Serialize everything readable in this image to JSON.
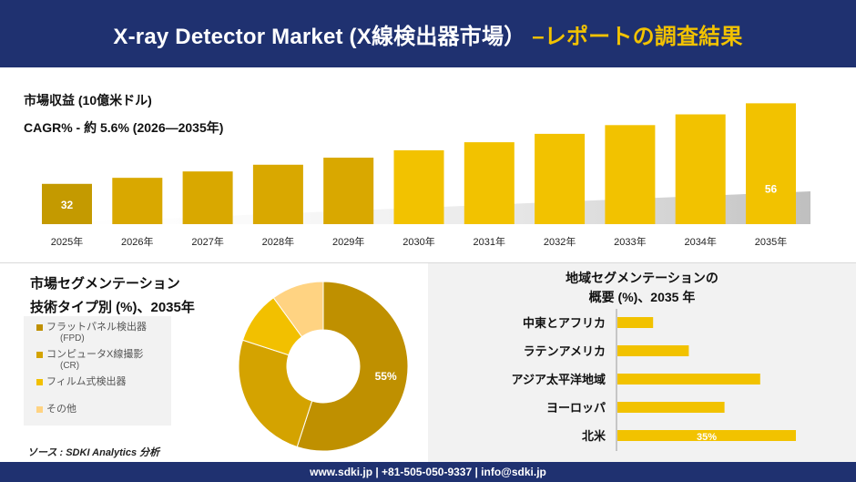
{
  "header": {
    "title_main": "X-ray Detector Market (X線検出器市場）",
    "title_accent": "–レポートの調査結果"
  },
  "top_labels": {
    "revenue": "市場収益 (10億米ドル)",
    "cagr": "CAGR% - 約 5.6% (2026—2035年)"
  },
  "colors": {
    "bar_dark": "#c49a00",
    "bar_mid": "#d9a800",
    "bar_light": "#f2c200",
    "navy": "#1f3170",
    "donut_1": "#bf9000",
    "donut_2": "#d4a300",
    "donut_3": "#f2c000",
    "donut_4": "#ffd382"
  },
  "chart_data": [
    {
      "type": "bar",
      "categories": [
        "2025年",
        "2026年",
        "2027年",
        "2028年",
        "2029年",
        "2030年",
        "2031年",
        "2032年",
        "2033年",
        "2034年",
        "2035年"
      ],
      "values": [
        32,
        33.8,
        35.7,
        37.7,
        39.8,
        42.0,
        44.4,
        46.9,
        49.5,
        52.7,
        56
      ],
      "data_labels": [
        "32",
        "",
        "",
        "",
        "",
        "",
        "",
        "",
        "",
        "",
        "56"
      ],
      "ylim": [
        20,
        58
      ]
    },
    {
      "type": "pie",
      "title": "市場セグメンテーション\n技術タイプ別 (%)、2035年",
      "labels": [
        "フラットパネル検出器 (FPD)",
        "コンピュータX線撮影 (CR)",
        "フィルム式検出器",
        "その他"
      ],
      "values": [
        55,
        25,
        10,
        10
      ],
      "data_labels": [
        "55%",
        "",
        "",
        ""
      ]
    },
    {
      "type": "bar",
      "orientation": "horizontal",
      "title": "地域セグメンテーションの\n概要 (%)、2035 年",
      "categories": [
        "中東とアフリカ",
        "ラテンアメリカ",
        "アジア太平洋地域",
        "ヨーロッパ",
        "北米"
      ],
      "values": [
        7,
        14,
        28,
        21,
        35
      ],
      "data_labels": [
        "",
        "",
        "",
        "",
        "35%"
      ],
      "xlim": [
        0,
        35
      ]
    }
  ],
  "segment": {
    "title_line1": "市場セグメンテーション",
    "title_line2": "技術タイプ別 (%)、2035年",
    "legend": [
      {
        "main": "フラットパネル検出器",
        "sub": "(FPD)"
      },
      {
        "main": "コンピュータX線撮影",
        "sub": "(CR)"
      },
      {
        "main": "フィルム式検出器",
        "sub": ""
      },
      {
        "main": "その他",
        "sub": ""
      }
    ],
    "source": "ソース : SDKI Analytics 分析"
  },
  "region": {
    "title_line1": "地域セグメンテーションの",
    "title_line2": "概要 (%)、2035 年"
  },
  "footer": {
    "text": "www.sdki.jp | +81-505-050-9337 | info@sdki.jp"
  }
}
